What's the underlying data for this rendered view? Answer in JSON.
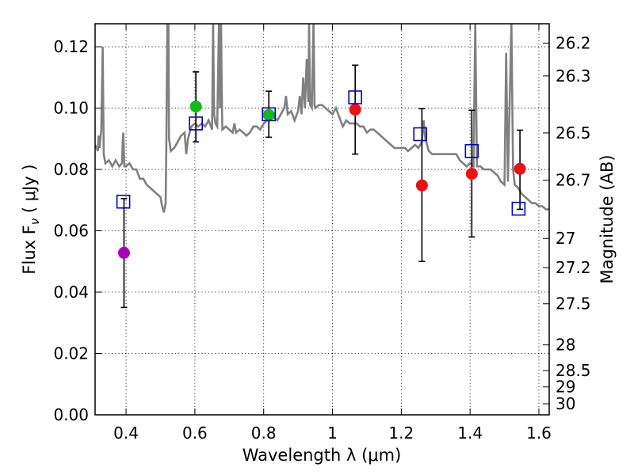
{
  "chart_data": {
    "type": "scatter",
    "title": "",
    "xlabel": "Wavelength  λ (μm)",
    "ylabel": "Flux  F",
    "ylabel_sub": "ν",
    "ylabel_unit": " ( μJy )",
    "y2label": "Magnitude (AB)",
    "xlim": [
      0.31,
      1.63
    ],
    "ylim": [
      0.0,
      0.1275
    ],
    "grid": true,
    "x_ticks": [
      {
        "value": 0.4,
        "label": "0.4"
      },
      {
        "value": 0.6,
        "label": "0.6"
      },
      {
        "value": 0.8,
        "label": "0.8"
      },
      {
        "value": 1.0,
        "label": "1"
      },
      {
        "value": 1.2,
        "label": "1.2"
      },
      {
        "value": 1.4,
        "label": "1.4"
      },
      {
        "value": 1.6,
        "label": "1.6"
      }
    ],
    "y_ticks": [
      {
        "value": 0.0,
        "label": "0.00"
      },
      {
        "value": 0.02,
        "label": "0.02"
      },
      {
        "value": 0.04,
        "label": "0.04"
      },
      {
        "value": 0.06,
        "label": "0.06"
      },
      {
        "value": 0.08,
        "label": "0.08"
      },
      {
        "value": 0.1,
        "label": "0.10"
      },
      {
        "value": 0.12,
        "label": "0.12"
      }
    ],
    "y2_ticks": [
      {
        "label": "26.2",
        "flux": 0.1212
      },
      {
        "label": "26.3",
        "flux": 0.1105
      },
      {
        "label": "26.5",
        "flux": 0.0919
      },
      {
        "label": "26.7",
        "flux": 0.0765
      },
      {
        "label": "27",
        "flux": 0.0575
      },
      {
        "label": "27.2",
        "flux": 0.048
      },
      {
        "label": "27.5",
        "flux": 0.0362
      },
      {
        "label": "28",
        "flux": 0.0228
      },
      {
        "label": "28.5",
        "flux": 0.0144
      },
      {
        "label": "29",
        "flux": 0.0091
      },
      {
        "label": "30",
        "flux": 0.0036
      }
    ],
    "observed_points": [
      {
        "x": 0.394,
        "y": 0.0528,
        "err_low": 0.035,
        "err_high": 0.0705,
        "color": "#aa00bb"
      },
      {
        "x": 0.603,
        "y": 0.1005,
        "err_low": 0.089,
        "err_high": 0.1118,
        "color": "#11bb11"
      },
      {
        "x": 0.815,
        "y": 0.0978,
        "err_low": 0.0905,
        "err_high": 0.1055,
        "color": "#11bb11"
      },
      {
        "x": 1.066,
        "y": 0.0995,
        "err_low": 0.085,
        "err_high": 0.114,
        "color": "#ee1111"
      },
      {
        "x": 1.26,
        "y": 0.0748,
        "err_low": 0.05,
        "err_high": 0.0998,
        "color": "#ee1111"
      },
      {
        "x": 1.405,
        "y": 0.0786,
        "err_low": 0.058,
        "err_high": 0.0993,
        "color": "#ee1111"
      },
      {
        "x": 1.545,
        "y": 0.0802,
        "err_low": 0.067,
        "err_high": 0.0928,
        "color": "#ee1111"
      }
    ],
    "model_points": [
      {
        "x": 0.392,
        "y": 0.0695
      },
      {
        "x": 0.603,
        "y": 0.095
      },
      {
        "x": 0.815,
        "y": 0.098
      },
      {
        "x": 1.066,
        "y": 0.1035
      },
      {
        "x": 1.255,
        "y": 0.0915
      },
      {
        "x": 1.405,
        "y": 0.086
      },
      {
        "x": 1.541,
        "y": 0.0672
      }
    ],
    "model_marker_color": "#0000cc",
    "spectrum_color": "#808080",
    "spectrum": [
      [
        0.31,
        0.088
      ],
      [
        0.318,
        0.086
      ],
      [
        0.32,
        0.091
      ],
      [
        0.323,
        0.087
      ],
      [
        0.328,
        0.093
      ],
      [
        0.332,
        0.12
      ],
      [
        0.335,
        0.085
      ],
      [
        0.34,
        0.082
      ],
      [
        0.35,
        0.083
      ],
      [
        0.36,
        0.081
      ],
      [
        0.37,
        0.083
      ],
      [
        0.38,
        0.081
      ],
      [
        0.388,
        0.082
      ],
      [
        0.39,
        0.088
      ],
      [
        0.392,
        0.092
      ],
      [
        0.395,
        0.081
      ],
      [
        0.4,
        0.081
      ],
      [
        0.41,
        0.082
      ],
      [
        0.42,
        0.08
      ],
      [
        0.43,
        0.08
      ],
      [
        0.44,
        0.077
      ],
      [
        0.45,
        0.077
      ],
      [
        0.46,
        0.075
      ],
      [
        0.47,
        0.074
      ],
      [
        0.48,
        0.073
      ],
      [
        0.49,
        0.072
      ],
      [
        0.5,
        0.071
      ],
      [
        0.505,
        0.068
      ],
      [
        0.51,
        0.066
      ],
      [
        0.515,
        0.069
      ],
      [
        0.517,
        0.088
      ],
      [
        0.52,
        0.128
      ],
      [
        0.523,
        0.128
      ],
      [
        0.525,
        0.09
      ],
      [
        0.53,
        0.086
      ],
      [
        0.54,
        0.087
      ],
      [
        0.55,
        0.089
      ],
      [
        0.56,
        0.091
      ],
      [
        0.57,
        0.092
      ],
      [
        0.575,
        0.085
      ],
      [
        0.58,
        0.09
      ],
      [
        0.59,
        0.094
      ],
      [
        0.6,
        0.095
      ],
      [
        0.61,
        0.094
      ],
      [
        0.62,
        0.095
      ],
      [
        0.63,
        0.094
      ],
      [
        0.64,
        0.096
      ],
      [
        0.65,
        0.093
      ],
      [
        0.653,
        0.128
      ],
      [
        0.656,
        0.098
      ],
      [
        0.66,
        0.095
      ],
      [
        0.665,
        0.094
      ],
      [
        0.67,
        0.128
      ],
      [
        0.673,
        0.1
      ],
      [
        0.676,
        0.128
      ],
      [
        0.679,
        0.098
      ],
      [
        0.68,
        0.093
      ],
      [
        0.69,
        0.094
      ],
      [
        0.7,
        0.093
      ],
      [
        0.71,
        0.092
      ],
      [
        0.715,
        0.095
      ],
      [
        0.72,
        0.092
      ],
      [
        0.73,
        0.093
      ],
      [
        0.74,
        0.092
      ],
      [
        0.75,
        0.091
      ],
      [
        0.76,
        0.092
      ],
      [
        0.77,
        0.094
      ],
      [
        0.78,
        0.094
      ],
      [
        0.79,
        0.093
      ],
      [
        0.8,
        0.095
      ],
      [
        0.81,
        0.096
      ],
      [
        0.82,
        0.097
      ],
      [
        0.83,
        0.097
      ],
      [
        0.84,
        0.096
      ],
      [
        0.85,
        0.098
      ],
      [
        0.86,
        0.1
      ],
      [
        0.865,
        0.104
      ],
      [
        0.87,
        0.098
      ],
      [
        0.88,
        0.099
      ],
      [
        0.89,
        0.096
      ],
      [
        0.9,
        0.099
      ],
      [
        0.905,
        0.104
      ],
      [
        0.91,
        0.098
      ],
      [
        0.915,
        0.11
      ],
      [
        0.92,
        0.1
      ],
      [
        0.925,
        0.116
      ],
      [
        0.93,
        0.102
      ],
      [
        0.932,
        0.128
      ],
      [
        0.935,
        0.101
      ],
      [
        0.94,
        0.1
      ],
      [
        0.945,
        0.128
      ],
      [
        0.948,
        0.101
      ],
      [
        0.95,
        0.1
      ],
      [
        0.96,
        0.101
      ],
      [
        0.97,
        0.101
      ],
      [
        0.98,
        0.1
      ],
      [
        0.99,
        0.099
      ],
      [
        1.0,
        0.098
      ],
      [
        1.01,
        0.1
      ],
      [
        1.02,
        0.097
      ],
      [
        1.03,
        0.094
      ],
      [
        1.04,
        0.096
      ],
      [
        1.05,
        0.095
      ],
      [
        1.06,
        0.095
      ],
      [
        1.07,
        0.095
      ],
      [
        1.08,
        0.094
      ],
      [
        1.09,
        0.094
      ],
      [
        1.1,
        0.092
      ],
      [
        1.11,
        0.093
      ],
      [
        1.12,
        0.093
      ],
      [
        1.13,
        0.092
      ],
      [
        1.14,
        0.091
      ],
      [
        1.15,
        0.09
      ],
      [
        1.16,
        0.089
      ],
      [
        1.17,
        0.088
      ],
      [
        1.18,
        0.087
      ],
      [
        1.19,
        0.087
      ],
      [
        1.2,
        0.087
      ],
      [
        1.21,
        0.087
      ],
      [
        1.22,
        0.086
      ],
      [
        1.23,
        0.087
      ],
      [
        1.24,
        0.088
      ],
      [
        1.25,
        0.087
      ],
      [
        1.26,
        0.089
      ],
      [
        1.265,
        0.096
      ],
      [
        1.27,
        0.09
      ],
      [
        1.28,
        0.086
      ],
      [
        1.29,
        0.085
      ],
      [
        1.3,
        0.085
      ],
      [
        1.31,
        0.085
      ],
      [
        1.32,
        0.085
      ],
      [
        1.33,
        0.085
      ],
      [
        1.34,
        0.085
      ],
      [
        1.35,
        0.085
      ],
      [
        1.36,
        0.085
      ],
      [
        1.37,
        0.083
      ],
      [
        1.38,
        0.082
      ],
      [
        1.39,
        0.081
      ],
      [
        1.4,
        0.082
      ],
      [
        1.41,
        0.081
      ],
      [
        1.415,
        0.128
      ],
      [
        1.42,
        0.081
      ],
      [
        1.43,
        0.081
      ],
      [
        1.44,
        0.08
      ],
      [
        1.45,
        0.08
      ],
      [
        1.46,
        0.08
      ],
      [
        1.47,
        0.079
      ],
      [
        1.48,
        0.078
      ],
      [
        1.49,
        0.076
      ],
      [
        1.5,
        0.075
      ],
      [
        1.505,
        0.118
      ],
      [
        1.51,
        0.076
      ],
      [
        1.52,
        0.128
      ],
      [
        1.525,
        0.08
      ],
      [
        1.53,
        0.075
      ],
      [
        1.54,
        0.074
      ],
      [
        1.55,
        0.072
      ],
      [
        1.56,
        0.071
      ],
      [
        1.57,
        0.07
      ],
      [
        1.58,
        0.069
      ],
      [
        1.59,
        0.069
      ],
      [
        1.6,
        0.068
      ],
      [
        1.61,
        0.068
      ],
      [
        1.62,
        0.067
      ],
      [
        1.63,
        0.067
      ]
    ]
  }
}
